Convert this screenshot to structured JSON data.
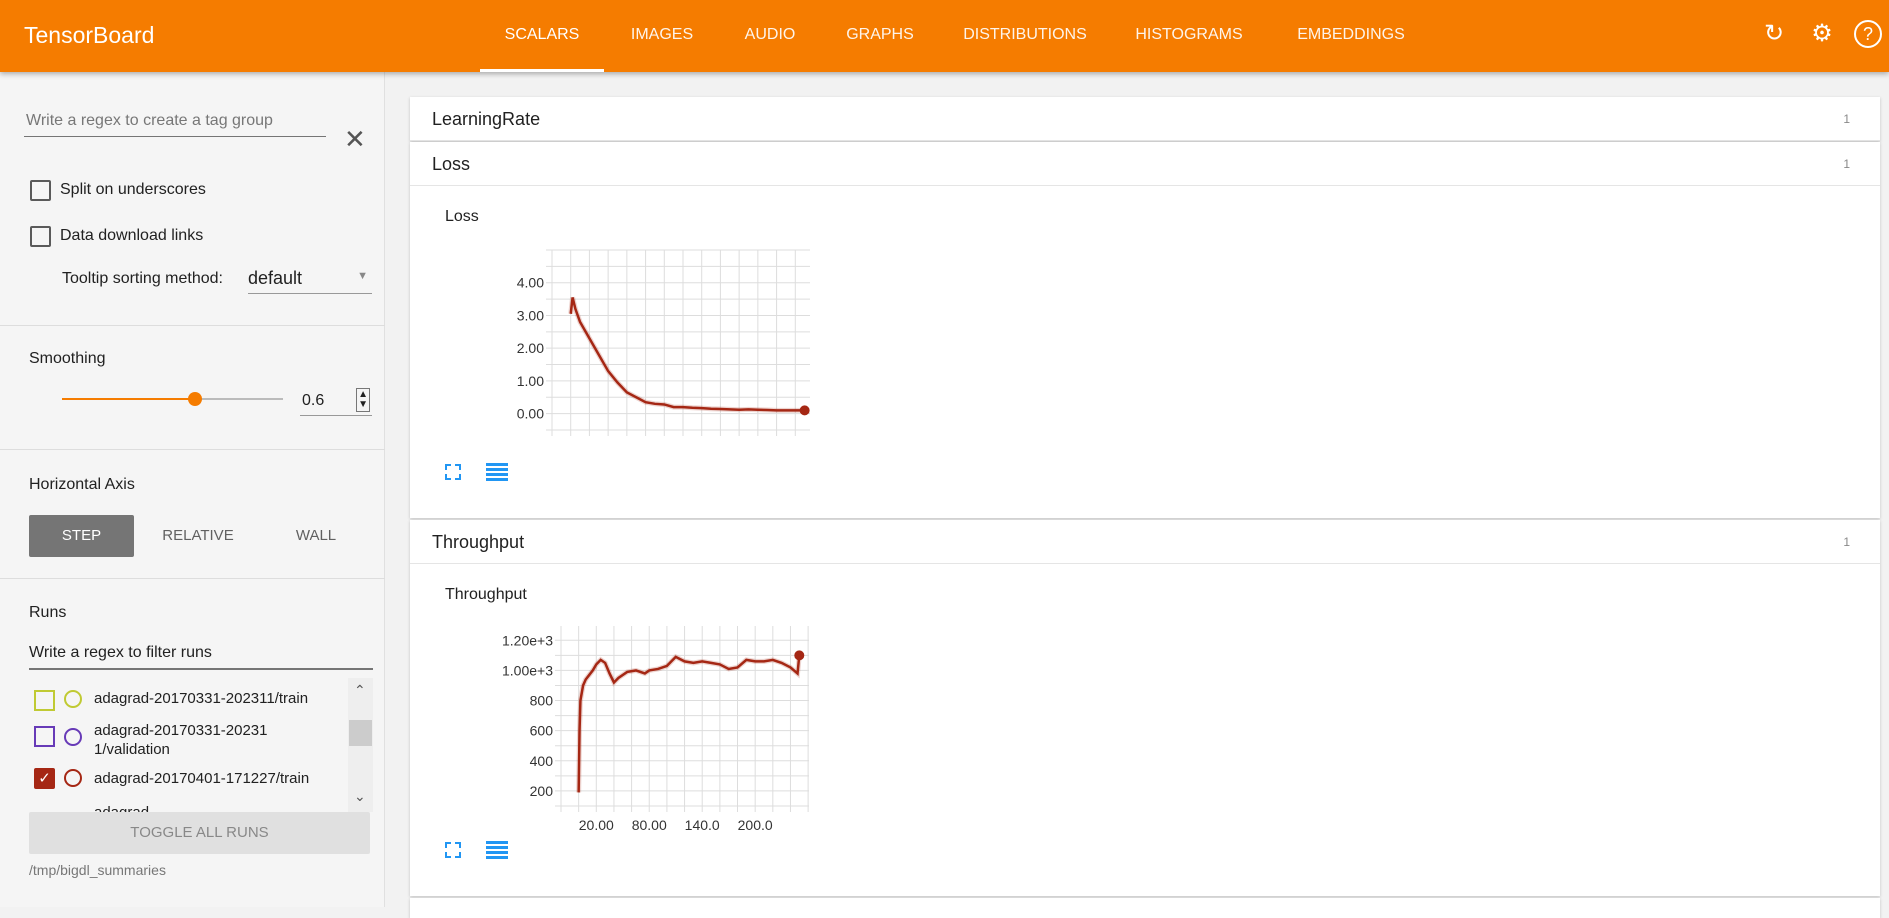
{
  "header": {
    "title": "TensorBoard",
    "tabs": [
      "SCALARS",
      "IMAGES",
      "AUDIO",
      "GRAPHS",
      "DISTRIBUTIONS",
      "HISTOGRAMS",
      "EMBEDDINGS"
    ],
    "active_tab": "SCALARS",
    "icons": [
      "refresh-icon",
      "settings-icon",
      "help-icon"
    ],
    "color": "#f57c00"
  },
  "sidebar": {
    "tag_regex_placeholder": "Write a regex to create a tag group",
    "split_label": "Split on underscores",
    "split_checked": false,
    "download_label": "Data download links",
    "download_checked": false,
    "tooltip_label": "Tooltip sorting method:",
    "tooltip_value": "default",
    "smoothing_label": "Smoothing",
    "smoothing_value": "0.6",
    "smoothing_fraction": 0.6,
    "haxis_label": "Horizontal Axis",
    "haxis_options": [
      "STEP",
      "RELATIVE",
      "WALL"
    ],
    "haxis_selected": "STEP",
    "runs_label": "Runs",
    "runs_filter_placeholder": "Write a regex to filter runs",
    "runs": [
      {
        "name": "adagrad-20170331-202311/train",
        "color": "#c0ca33",
        "checked": false
      },
      {
        "name": "adagrad-20170331-202311/validation",
        "color": "#673ab7",
        "checked": false
      },
      {
        "name": "adagrad-20170401-171227/train",
        "color": "#a52714",
        "checked": true
      },
      {
        "name": "adagrad-",
        "color": "#888888",
        "checked": false
      }
    ],
    "toggle_all": "TOGGLE ALL RUNS",
    "logdir": "/tmp/bigdl_summaries"
  },
  "main": {
    "groups": [
      {
        "name": "LearningRate",
        "count": "1"
      },
      {
        "name": "Loss",
        "count": "1"
      },
      {
        "name": "Throughput",
        "count": "1"
      }
    ]
  },
  "chart_data": [
    {
      "type": "line",
      "title": "Loss",
      "xlim": [
        -20,
        260
      ],
      "ylim": [
        -0.5,
        5.0
      ],
      "yticks": [
        "0.00",
        "1.00",
        "2.00",
        "3.00",
        "4.00"
      ],
      "xticks": [],
      "grid": true,
      "color": "#a52714",
      "x": [
        0,
        2,
        5,
        10,
        20,
        30,
        40,
        50,
        60,
        70,
        80,
        90,
        100,
        110,
        120,
        130,
        140,
        150,
        160,
        170,
        180,
        190,
        200,
        210,
        220,
        230,
        240,
        250
      ],
      "y": [
        3.05,
        3.55,
        3.2,
        2.8,
        2.3,
        1.8,
        1.3,
        0.95,
        0.65,
        0.5,
        0.35,
        0.3,
        0.28,
        0.2,
        0.2,
        0.18,
        0.17,
        0.15,
        0.14,
        0.13,
        0.12,
        0.13,
        0.12,
        0.11,
        0.1,
        0.1,
        0.1,
        0.1
      ]
    },
    {
      "type": "line",
      "title": "Throughput",
      "xlim": [
        -20,
        261
      ],
      "ylim": [
        100,
        1295
      ],
      "yticks": [
        "200",
        "400",
        "600",
        "800",
        "1.00e+3",
        "1.20e+3"
      ],
      "ytick_values": [
        200,
        400,
        600,
        800,
        1000,
        1200
      ],
      "xticks": [
        "20.00",
        "80.00",
        "140.0",
        "200.0"
      ],
      "xtick_values": [
        20,
        80,
        140,
        200
      ],
      "grid": true,
      "color": "#a52714",
      "x": [
        0,
        1,
        2,
        5,
        8,
        12,
        16,
        20,
        25,
        30,
        35,
        40,
        45,
        55,
        65,
        75,
        80,
        90,
        100,
        110,
        120,
        130,
        140,
        150,
        160,
        170,
        180,
        190,
        200,
        210,
        220,
        230,
        240,
        248,
        250
      ],
      "y": [
        190,
        600,
        800,
        900,
        940,
        970,
        1000,
        1040,
        1070,
        1050,
        980,
        920,
        950,
        990,
        1000,
        980,
        1000,
        1010,
        1030,
        1090,
        1060,
        1050,
        1060,
        1050,
        1040,
        1010,
        1020,
        1070,
        1060,
        1060,
        1070,
        1050,
        1020,
        980,
        1100
      ]
    }
  ]
}
